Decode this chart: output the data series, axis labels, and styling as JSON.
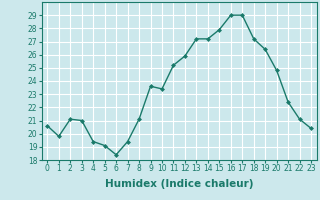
{
  "title": "",
  "xlabel": "Humidex (Indice chaleur)",
  "ylabel": "",
  "x": [
    0,
    1,
    2,
    3,
    4,
    5,
    6,
    7,
    8,
    9,
    10,
    11,
    12,
    13,
    14,
    15,
    16,
    17,
    18,
    19,
    20,
    21,
    22,
    23
  ],
  "y": [
    20.6,
    19.8,
    21.1,
    21.0,
    19.4,
    19.1,
    18.4,
    19.4,
    21.1,
    23.6,
    23.4,
    25.2,
    25.9,
    27.2,
    27.2,
    27.9,
    29.0,
    29.0,
    27.2,
    26.4,
    24.8,
    22.4,
    21.1,
    20.4
  ],
  "line_color": "#1a7a6a",
  "marker": "D",
  "markersize": 2,
  "linewidth": 1.0,
  "ylim": [
    18,
    30
  ],
  "yticks": [
    18,
    19,
    20,
    21,
    22,
    23,
    24,
    25,
    26,
    27,
    28,
    29
  ],
  "xlim": [
    -0.5,
    23.5
  ],
  "xticks": [
    0,
    1,
    2,
    3,
    4,
    5,
    6,
    7,
    8,
    9,
    10,
    11,
    12,
    13,
    14,
    15,
    16,
    17,
    18,
    19,
    20,
    21,
    22,
    23
  ],
  "bg_color": "#cce8ec",
  "grid_color": "#ffffff",
  "tick_label_fontsize": 5.5,
  "xlabel_fontsize": 7.5,
  "tick_color": "#1a7a6a",
  "label_color": "#1a7a6a"
}
